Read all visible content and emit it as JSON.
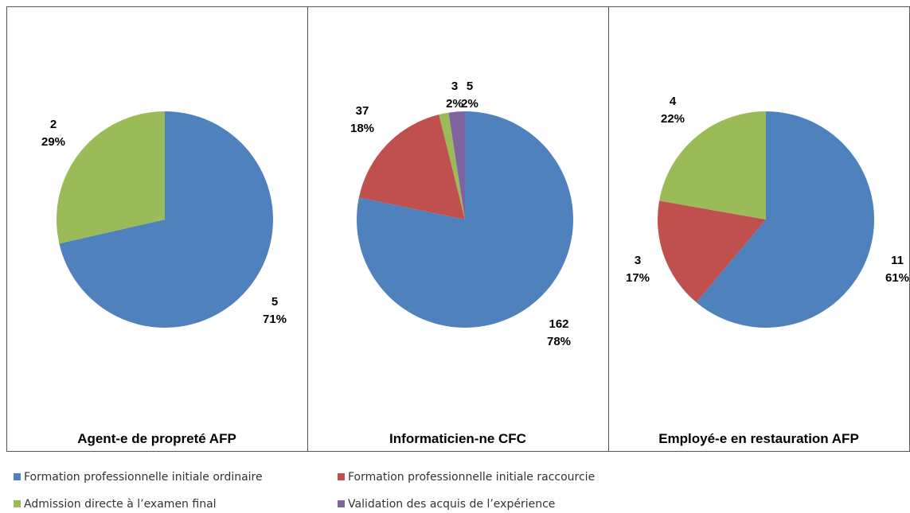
{
  "chart_data": [
    {
      "type": "pie",
      "title": "Agent-e de propreté AFP",
      "categories": [
        "Formation professionnelle initiale ordinaire",
        "Admission directe à l’examen final"
      ],
      "colors": [
        "#4f81bd",
        "#9bbb59"
      ],
      "values": [
        5,
        2
      ],
      "percent_labels": [
        "71%",
        "29%"
      ]
    },
    {
      "type": "pie",
      "title": "Informaticien-ne CFC",
      "categories": [
        "Formation professionnelle initiale ordinaire",
        "Formation professionnelle initiale raccourcie",
        "Admission directe à l’examen final",
        "Validation des acquis de l’expérience"
      ],
      "colors": [
        "#4f81bd",
        "#c0504d",
        "#9bbb59",
        "#8064a2"
      ],
      "values": [
        162,
        37,
        3,
        5
      ],
      "percent_labels": [
        "78%",
        "18%",
        "2%",
        "2%"
      ]
    },
    {
      "type": "pie",
      "title": "Employé-e en restauration AFP",
      "categories": [
        "Formation professionnelle initiale ordinaire",
        "Formation professionnelle initiale raccourcie",
        "Admission directe à l’examen final"
      ],
      "colors": [
        "#4f81bd",
        "#c0504d",
        "#9bbb59"
      ],
      "values": [
        11,
        3,
        4
      ],
      "percent_labels": [
        "61%",
        "17%",
        "22%"
      ]
    }
  ],
  "legend": [
    {
      "name": "Formation professionnelle initiale ordinaire",
      "color": "#4f81bd"
    },
    {
      "name": "Formation professionnelle initiale raccourcie",
      "color": "#c0504d"
    },
    {
      "name": "Admission directe à l’examen final",
      "color": "#9bbb59"
    },
    {
      "name": "Validation des acquis de l’expérience",
      "color": "#8064a2"
    }
  ]
}
